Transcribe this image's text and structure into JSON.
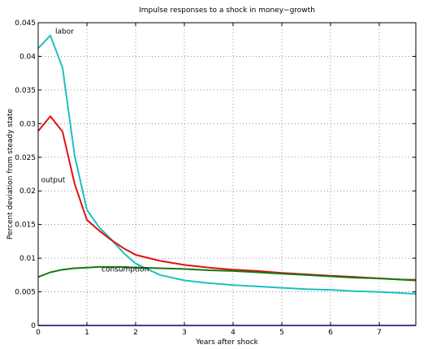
{
  "chart_data": {
    "type": "line",
    "title": "Impulse responses to a shock in money−growth",
    "xlabel": "Years after shock",
    "ylabel": "Percent deviation from steady state",
    "xlim": [
      0,
      7.75
    ],
    "ylim": [
      0,
      0.045
    ],
    "xticks": [
      0,
      1,
      2,
      3,
      4,
      5,
      6,
      7
    ],
    "xtick_labels": [
      "0",
      "1",
      "2",
      "3",
      "4",
      "5",
      "6",
      "7"
    ],
    "yticks": [
      0,
      0.005,
      0.01,
      0.015,
      0.02,
      0.025,
      0.03,
      0.035,
      0.04,
      0.045
    ],
    "ytick_labels": [
      "0",
      "0.005",
      "0.01",
      "0.015",
      "0.02",
      "0.025",
      "0.03",
      "0.035",
      "0.04",
      "0.045"
    ],
    "grid": true,
    "colors": {
      "labor": "#1fbfbf",
      "output": "#e01010",
      "consumption": "#107a10",
      "axis_zero": "#00007a"
    },
    "series": [
      {
        "name": "labor",
        "x": [
          0,
          0.25,
          0.5,
          0.75,
          1.0,
          1.25,
          1.5,
          1.75,
          2.0,
          2.5,
          3.0,
          3.5,
          4.0,
          4.5,
          5.0,
          5.5,
          6.0,
          6.5,
          7.0,
          7.5,
          7.75
        ],
        "y": [
          0.0412,
          0.0431,
          0.0383,
          0.0252,
          0.0172,
          0.0146,
          0.0128,
          0.0108,
          0.0092,
          0.0075,
          0.0067,
          0.0063,
          0.006,
          0.0058,
          0.0056,
          0.0054,
          0.0053,
          0.0051,
          0.005,
          0.0048,
          0.0047
        ]
      },
      {
        "name": "output",
        "x": [
          0,
          0.25,
          0.5,
          0.75,
          1.0,
          1.25,
          1.5,
          1.75,
          2.0,
          2.5,
          3.0,
          3.5,
          4.0,
          4.5,
          5.0,
          5.5,
          6.0,
          6.5,
          7.0,
          7.5,
          7.75
        ],
        "y": [
          0.0289,
          0.0311,
          0.0288,
          0.021,
          0.0157,
          0.0141,
          0.0127,
          0.0115,
          0.0105,
          0.0096,
          0.009,
          0.0086,
          0.0083,
          0.0081,
          0.0078,
          0.0076,
          0.0074,
          0.0072,
          0.007,
          0.0068,
          0.0068
        ]
      },
      {
        "name": "consumption",
        "x": [
          0,
          0.25,
          0.5,
          0.75,
          1.0,
          1.25,
          1.5,
          1.75,
          2.0,
          2.5,
          3.0,
          3.5,
          4.0,
          4.5,
          5.0,
          5.5,
          6.0,
          6.5,
          7.0,
          7.5,
          7.75
        ],
        "y": [
          0.0072,
          0.0079,
          0.0083,
          0.0085,
          0.0086,
          0.0087,
          0.0087,
          0.0087,
          0.0086,
          0.0085,
          0.0084,
          0.0082,
          0.0081,
          0.0079,
          0.0077,
          0.0075,
          0.0073,
          0.0071,
          0.007,
          0.0068,
          0.0067
        ]
      }
    ],
    "annotations": [
      {
        "text": "labor",
        "x": 0.35,
        "y": 0.0434
      },
      {
        "text": "output",
        "x": 0.06,
        "y": 0.0213
      },
      {
        "text": "consumption",
        "x": 1.3,
        "y": 0.008
      }
    ]
  }
}
